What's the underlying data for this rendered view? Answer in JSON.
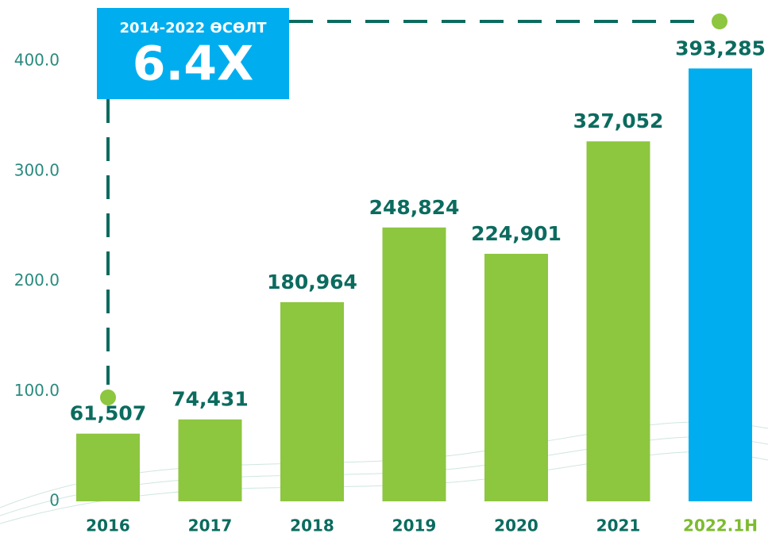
{
  "chart_data": {
    "type": "bar",
    "categories": [
      "2016",
      "2017",
      "2018",
      "2019",
      "2020",
      "2021",
      "2022.1H"
    ],
    "values": [
      61.507,
      74.431,
      180.964,
      248.824,
      224.901,
      327.052,
      393.285
    ],
    "value_labels": [
      "61,507",
      "74,431",
      "180,964",
      "248,824",
      "224,901",
      "327,052",
      "393,285"
    ],
    "colors": [
      "#8dc63f",
      "#8dc63f",
      "#8dc63f",
      "#8dc63f",
      "#8dc63f",
      "#8dc63f",
      "#00aeef"
    ],
    "ylim": [
      0,
      400
    ],
    "yticks": [
      0,
      {
        "value": 100,
        "label": "100.0"
      },
      {
        "value": 200,
        "label": "200.0"
      },
      {
        "value": 300,
        "label": "300.0"
      },
      {
        "value": 400,
        "label": "400.0"
      }
    ],
    "annotation": {
      "subtitle": "2014-2022 ӨСӨЛТ",
      "text": "6.4X"
    }
  }
}
